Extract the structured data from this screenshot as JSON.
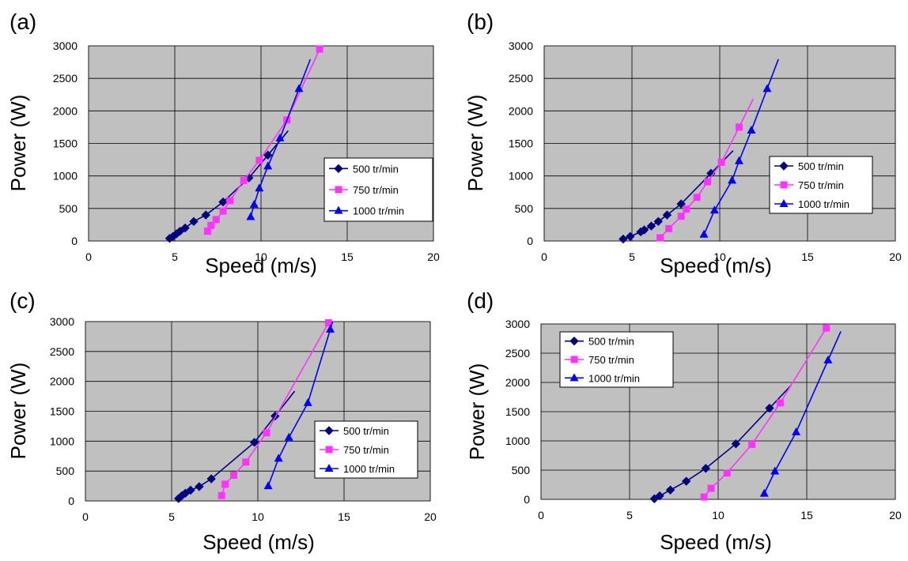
{
  "chart_data": [
    {
      "type": "line",
      "panel_label": "(a)",
      "xlabel": "Speed (m/s)",
      "ylabel": "Power (W)",
      "xlim": [
        0,
        20
      ],
      "ylim": [
        0,
        3000
      ],
      "xticks": [
        "0",
        "5",
        "10",
        "15",
        "20"
      ],
      "yticks": [
        "0",
        "500",
        "1000",
        "1500",
        "2000",
        "2500",
        "3000"
      ],
      "grid": true,
      "legend_position": "right-middle",
      "series": [
        {
          "name": "500 tr/min",
          "marker": "diamond",
          "color": "#000080",
          "x": [
            4.7,
            4.9,
            5.1,
            5.3,
            5.6,
            6.1,
            6.8,
            7.8,
            9.3,
            10.4
          ],
          "y": [
            40,
            70,
            110,
            150,
            200,
            300,
            400,
            600,
            970,
            1320
          ]
        },
        {
          "name": "750 tr/min",
          "marker": "square",
          "color": "#ff33ff",
          "x": [
            6.9,
            7.1,
            7.4,
            7.8,
            8.2,
            9.0,
            9.9,
            11.5,
            13.4
          ],
          "y": [
            150,
            240,
            330,
            460,
            620,
            930,
            1240,
            1860,
            2950
          ]
        },
        {
          "name": "1000 tr/min",
          "marker": "triangle",
          "color": "#0000ff",
          "x": [
            9.4,
            9.6,
            9.9,
            10.4,
            11.1,
            12.2
          ],
          "y": [
            370,
            560,
            810,
            1150,
            1580,
            2340
          ]
        }
      ]
    },
    {
      "type": "line",
      "panel_label": "(b)",
      "xlabel": "Speed (m/s)",
      "ylabel": "Power (W)",
      "xlim": [
        0,
        20
      ],
      "ylim": [
        0,
        3000
      ],
      "xticks": [
        "0",
        "5",
        "10",
        "15",
        "20"
      ],
      "yticks": [
        "0",
        "500",
        "1000",
        "1500",
        "2000",
        "2500",
        "3000"
      ],
      "grid": true,
      "legend_position": "right-middle",
      "series": [
        {
          "name": "500 tr/min",
          "marker": "diamond",
          "color": "#000080",
          "x": [
            4.5,
            4.9,
            5.5,
            5.7,
            6.1,
            6.5,
            7.0,
            7.8,
            9.5
          ],
          "y": [
            30,
            70,
            140,
            170,
            230,
            300,
            400,
            570,
            1040
          ]
        },
        {
          "name": "750 tr/min",
          "marker": "square",
          "color": "#ff33ff",
          "x": [
            6.6,
            7.1,
            7.8,
            8.1,
            8.7,
            9.3,
            10.1,
            11.1
          ],
          "y": [
            50,
            190,
            380,
            490,
            670,
            910,
            1210,
            1750
          ]
        },
        {
          "name": "1000 tr/min",
          "marker": "triangle",
          "color": "#0000ff",
          "x": [
            9.1,
            9.7,
            10.7,
            11.1,
            11.8,
            12.7
          ],
          "y": [
            100,
            470,
            930,
            1230,
            1700,
            2340
          ]
        }
      ]
    },
    {
      "type": "line",
      "panel_label": "(c)",
      "xlabel": "Speed (m/s)",
      "ylabel": "Power (W)",
      "xlim": [
        0,
        20
      ],
      "ylim": [
        0,
        3000
      ],
      "xticks": [
        "0",
        "5",
        "10",
        "15",
        "20"
      ],
      "yticks": [
        "0",
        "500",
        "1000",
        "1500",
        "2000",
        "2500",
        "3000"
      ],
      "grid": true,
      "legend_position": "right-middle",
      "series": [
        {
          "name": "500 tr/min",
          "marker": "diamond",
          "color": "#000080",
          "x": [
            5.4,
            5.6,
            5.8,
            6.1,
            6.6,
            7.3,
            9.8,
            11.0
          ],
          "y": [
            40,
            90,
            130,
            180,
            240,
            370,
            980,
            1420
          ]
        },
        {
          "name": "750 tr/min",
          "marker": "square",
          "color": "#ff33ff",
          "x": [
            7.9,
            8.1,
            8.6,
            9.3,
            10.5,
            14.1
          ],
          "y": [
            90,
            280,
            430,
            650,
            1140,
            2980
          ]
        },
        {
          "name": "1000 tr/min",
          "marker": "triangle",
          "color": "#0000ff",
          "x": [
            10.6,
            11.2,
            11.8,
            12.9,
            14.2
          ],
          "y": [
            250,
            710,
            1060,
            1640,
            2870
          ]
        }
      ]
    },
    {
      "type": "line",
      "panel_label": "(d)",
      "xlabel": "Speed (m/s)",
      "ylabel": "Power (W)",
      "xlim": [
        0,
        20
      ],
      "ylim": [
        0,
        3000
      ],
      "xticks": [
        "0",
        "5",
        "10",
        "15",
        "20"
      ],
      "yticks": [
        "0",
        "500",
        "1000",
        "1500",
        "2000",
        "2500",
        "3000"
      ],
      "grid": true,
      "legend_position": "top-left",
      "series": [
        {
          "name": "500 tr/min",
          "marker": "diamond",
          "color": "#000080",
          "x": [
            6.4,
            6.7,
            7.3,
            8.2,
            9.3,
            11.0,
            12.9
          ],
          "y": [
            10,
            60,
            160,
            310,
            530,
            950,
            1560
          ]
        },
        {
          "name": "750 tr/min",
          "marker": "square",
          "color": "#ff33ff",
          "x": [
            9.2,
            9.6,
            10.5,
            11.9,
            13.5,
            16.1
          ],
          "y": [
            40,
            190,
            450,
            940,
            1650,
            2930
          ]
        },
        {
          "name": "1000 tr/min",
          "marker": "triangle",
          "color": "#0000ff",
          "x": [
            12.6,
            13.2,
            14.4,
            16.2
          ],
          "y": [
            100,
            480,
            1150,
            2380
          ]
        }
      ]
    }
  ]
}
